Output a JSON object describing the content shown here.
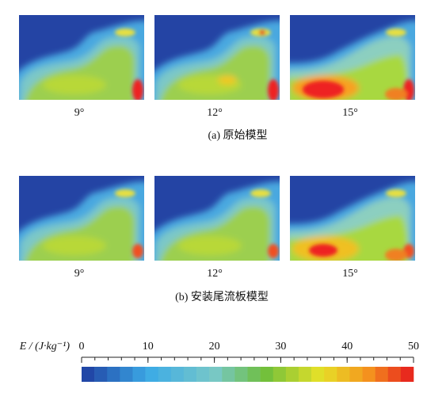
{
  "panels": [
    {
      "caption": "(a)  原始模型",
      "images": [
        {
          "label": "9°"
        },
        {
          "label": "12°"
        },
        {
          "label": "15°"
        }
      ]
    },
    {
      "caption": "(b)  安装尾流板模型",
      "images": [
        {
          "label": "9°"
        },
        {
          "label": "12°"
        },
        {
          "label": "15°"
        }
      ]
    }
  ],
  "colorbar": {
    "label": "E / (J·kg⁻¹)",
    "lim": [
      0,
      50
    ],
    "ticks": [
      0,
      10,
      20,
      30,
      40,
      50
    ]
  }
}
